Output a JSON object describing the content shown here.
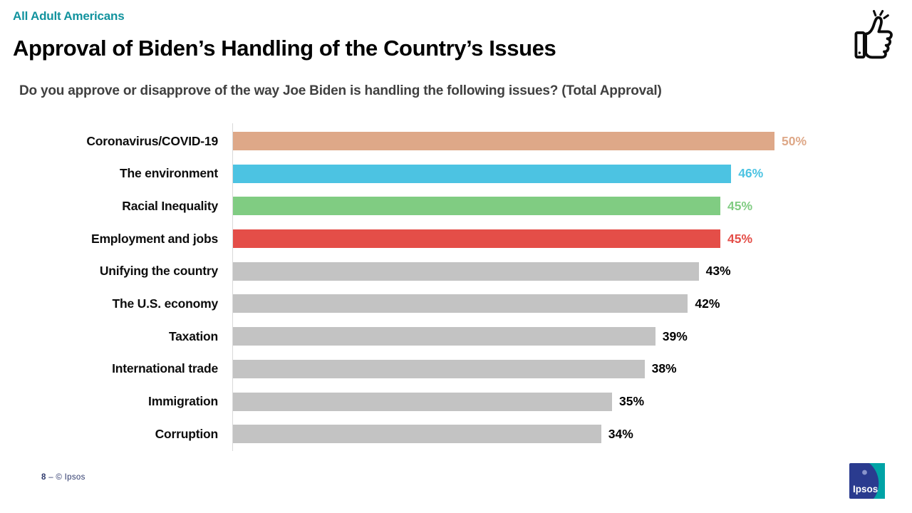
{
  "slide": {
    "eyebrow": "All Adult Americans",
    "title": "Approval of Biden’s Handling of the Country’s Issues",
    "subtitle": "Do you approve or disapprove of the way Joe Biden is handling the following issues? (Total Approval)",
    "corner_icon": "thumbs-up-icon"
  },
  "chart_data": {
    "type": "bar",
    "orientation": "horizontal",
    "title": "Approval of Biden’s Handling of the Country’s Issues (Total Approval)",
    "categories": [
      "Coronavirus/COVID-19",
      "The environment",
      "Racial Inequality",
      "Employment and jobs",
      "Unifying the country",
      "The U.S. economy",
      "Taxation",
      "International trade",
      "Immigration",
      "Corruption"
    ],
    "values": [
      50,
      46,
      45,
      45,
      43,
      42,
      39,
      38,
      35,
      34
    ],
    "value_labels": [
      "50%",
      "46%",
      "45%",
      "45%",
      "43%",
      "42%",
      "39%",
      "38%",
      "35%",
      "34%"
    ],
    "bar_colors": [
      "#DEA888",
      "#4CC3E2",
      "#80CC82",
      "#E44E48",
      "#C3C3C3",
      "#C3C3C3",
      "#C3C3C3",
      "#C3C3C3",
      "#C3C3C3",
      "#C3C3C3"
    ],
    "value_label_colors": [
      "#DEA888",
      "#4CC3E2",
      "#80CC82",
      "#E44E48",
      "#000000",
      "#000000",
      "#000000",
      "#000000",
      "#000000",
      "#000000"
    ],
    "xlim": [
      0,
      50
    ],
    "grid": false,
    "legend": false,
    "data_labels": "outside-end"
  },
  "footer": {
    "page_number": "8",
    "separator": "–",
    "copyright": "© Ipsos",
    "logo_text": "Ipsos"
  },
  "colors": {
    "eyebrow_teal": "#12939E",
    "subtitle_gray": "#404040",
    "axis_line": "#D9D9D9",
    "footer_navy": "#2F3A6D",
    "logo_navy": "#2A3B8F",
    "logo_teal": "#00A3A6"
  }
}
